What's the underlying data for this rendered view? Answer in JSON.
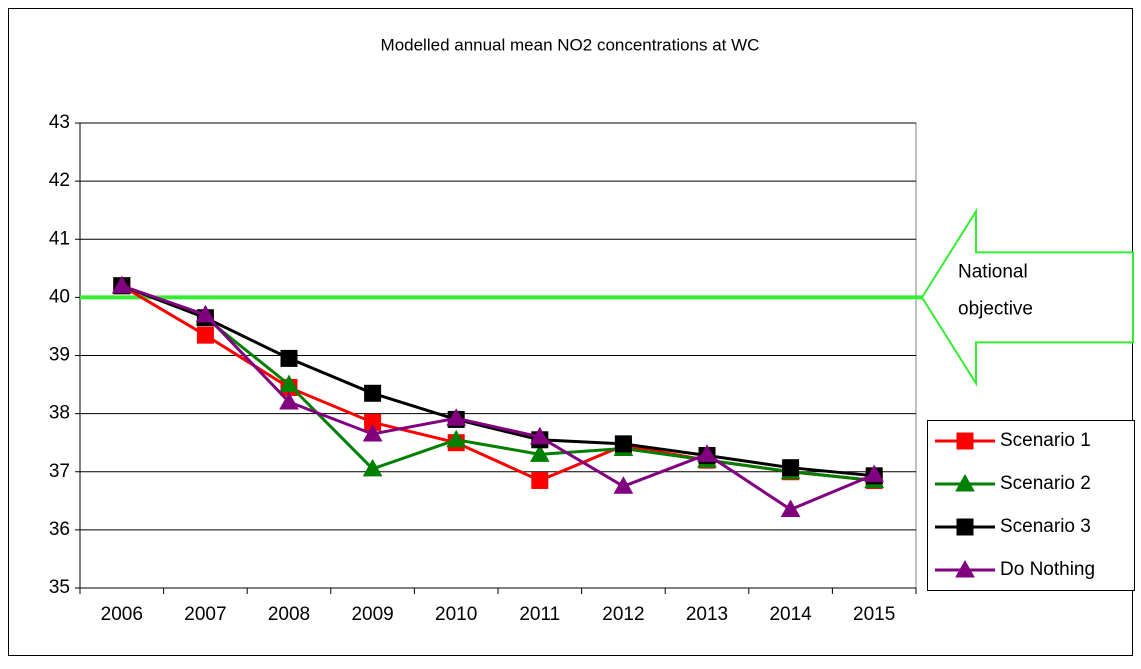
{
  "chart_data": {
    "type": "line",
    "title": "Modelled annual mean NO2 concentrations at WC",
    "categories": [
      "2006",
      "2007",
      "2008",
      "2009",
      "2010",
      "2011",
      "2012",
      "2013",
      "2014",
      "2015"
    ],
    "series": [
      {
        "name": "Scenario 1",
        "color": "#ff0000",
        "marker": "square",
        "values": [
          40.2,
          39.35,
          38.45,
          37.85,
          37.5,
          36.85,
          37.45,
          37.2,
          37.0,
          36.85
        ]
      },
      {
        "name": "Scenario 2",
        "color": "#008000",
        "marker": "triangle",
        "values": [
          40.2,
          39.65,
          38.5,
          37.05,
          37.55,
          37.3,
          37.4,
          37.2,
          37.0,
          36.85
        ]
      },
      {
        "name": "Scenario 3",
        "color": "#000000",
        "marker": "square",
        "values": [
          40.2,
          39.65,
          38.95,
          38.35,
          37.9,
          37.55,
          37.48,
          37.28,
          37.07,
          36.93
        ]
      },
      {
        "name": "Do Nothing",
        "color": "#800080",
        "marker": "triangle",
        "values": [
          40.2,
          39.7,
          38.2,
          37.65,
          37.92,
          37.6,
          36.75,
          37.3,
          36.35,
          36.95
        ]
      }
    ],
    "reference_line": {
      "value": 40,
      "label": "National objective",
      "color": "#33ee33"
    },
    "ylim": [
      35,
      43
    ],
    "yticks": [
      35,
      36,
      37,
      38,
      39,
      40,
      41,
      42,
      43
    ],
    "grid": true,
    "legend": "right"
  }
}
